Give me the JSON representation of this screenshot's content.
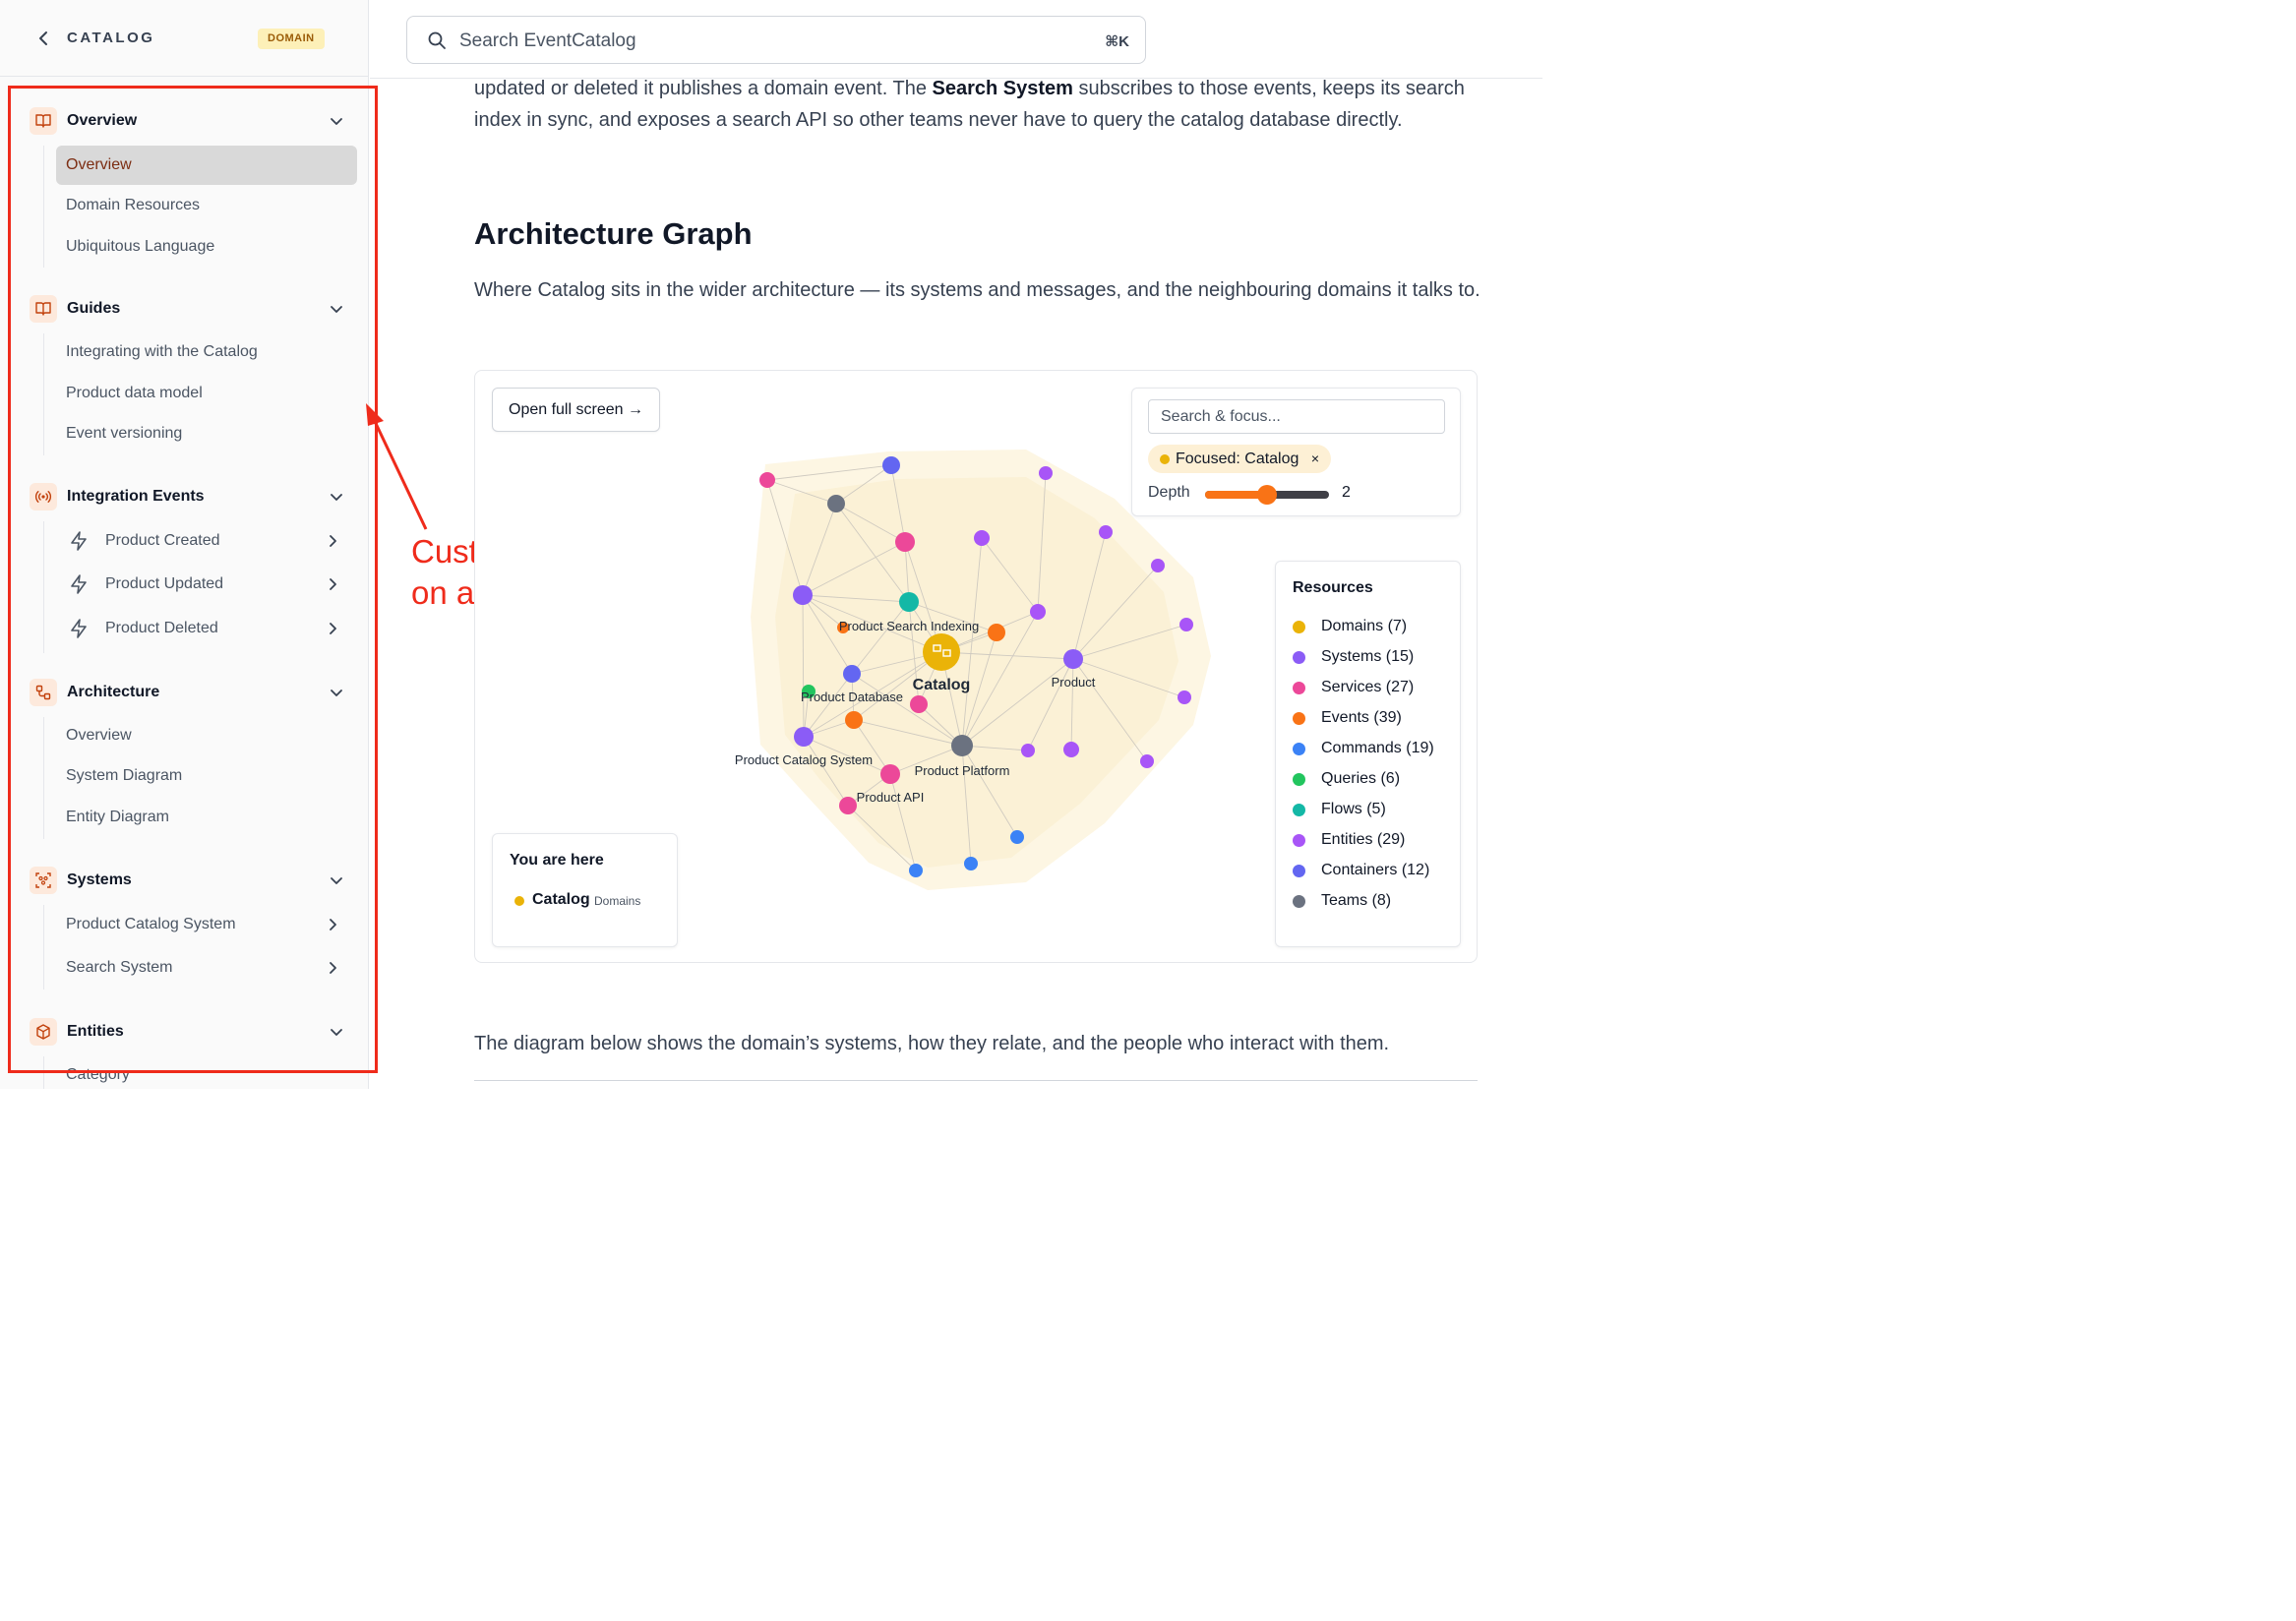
{
  "sidebar": {
    "title": "CATALOG",
    "badge": "DOMAIN",
    "sections": [
      {
        "label": "Overview",
        "icon": "book-icon",
        "items": [
          "Overview",
          "Domain Resources",
          "Ubiquitous Language"
        ],
        "active": "Overview"
      },
      {
        "label": "Guides",
        "icon": "book-icon",
        "items": [
          "Integrating with the Catalog",
          "Product data model",
          "Event versioning"
        ]
      },
      {
        "label": "Integration Events",
        "icon": "broadcast-icon",
        "items": [
          "Product Created",
          "Product Updated",
          "Product Deleted"
        ]
      },
      {
        "label": "Architecture",
        "icon": "architecture-icon",
        "items": [
          "Overview",
          "System Diagram",
          "Entity Diagram"
        ]
      },
      {
        "label": "Systems",
        "icon": "system-icon",
        "items": [
          "Product Catalog System",
          "Search System"
        ]
      },
      {
        "label": "Entities",
        "icon": "cube-icon",
        "items": [
          "Category"
        ]
      }
    ]
  },
  "annotation": {
    "line1": "Customize sidebar",
    "line2": "on any resource"
  },
  "search": {
    "placeholder": "Search EventCatalog",
    "shortcut": "⌘K"
  },
  "content": {
    "intro_pre": "updated or deleted it publishes a domain event. The ",
    "intro_bold": "Search System",
    "intro_post": " subscribes to those events, keeps its search index in sync, and exposes a search API so other teams never have to query the catalog database directly.",
    "heading": "Architecture Graph",
    "description": "Where Catalog sits in the wider architecture — its systems and messages, and the neighbouring domains it talks to.",
    "footer_text": "The diagram below shows the domain’s systems, how they relate, and the people who interact with them."
  },
  "graph": {
    "open_button": "Open full screen →",
    "focus_placeholder": "Search & focus...",
    "focus_chip": "Focused: Catalog",
    "focus_chip_close": "×",
    "depth_label": "Depth",
    "depth_value": "2",
    "depth_min": 1,
    "depth_max": 3,
    "node_labels": {
      "catalog": "Catalog",
      "product_search_indexing": "Product Search Indexing",
      "product_database": "Product Database",
      "product": "Product",
      "product_catalog_system": "Product Catalog System",
      "product_platform": "Product Platform",
      "product_api": "Product API"
    },
    "resources_title": "Resources",
    "resources": [
      {
        "label": "Domains (7)",
        "color": "#eab308"
      },
      {
        "label": "Systems (15)",
        "color": "#8b5cf6"
      },
      {
        "label": "Services (27)",
        "color": "#ec4899"
      },
      {
        "label": "Events (39)",
        "color": "#f97316"
      },
      {
        "label": "Commands (19)",
        "color": "#3b82f6"
      },
      {
        "label": "Queries (6)",
        "color": "#22c55e"
      },
      {
        "label": "Flows (5)",
        "color": "#14b8a6"
      },
      {
        "label": "Entities (29)",
        "color": "#a855f7"
      },
      {
        "label": "Containers (12)",
        "color": "#6366f1"
      },
      {
        "label": "Teams (8)",
        "color": "#6b7280"
      }
    ],
    "here_title": "You are here",
    "here_name": "Catalog",
    "here_type": "Domains"
  },
  "colors": {
    "accent": "#f97316",
    "annotation": "#ef2b1b",
    "domain": "#eab308"
  }
}
